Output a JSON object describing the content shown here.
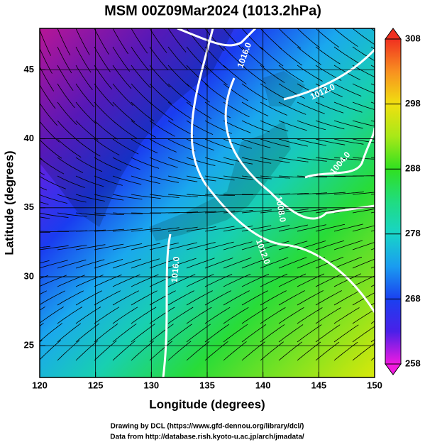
{
  "chart_data": {
    "type": "map",
    "title": "MSM 00Z09Mar2024 (1013.2hPa)",
    "x_label": "Longitude (degrees)",
    "y_label": "Latitude  (degrees)",
    "xlim": [
      120,
      150
    ],
    "xticks": [
      120,
      125,
      130,
      135,
      140,
      145,
      150
    ],
    "ylim": [
      22.7,
      48
    ],
    "yticks": [
      25,
      30,
      35,
      40,
      45
    ],
    "grid": true,
    "colorbar": {
      "lim": [
        258,
        308
      ],
      "ticks": [
        258,
        268,
        278,
        288,
        298,
        308
      ]
    },
    "contour_labels": [
      "1016.0",
      "1012.0",
      "1004.0",
      "1008.0",
      "1012.0",
      "1016.0"
    ],
    "credits": [
      "Drawing by DCL (https://www.gfd-dennou.org/library/dcl/)",
      "Data from http://database.rish.kyoto-u.ac.jp/arch/jmadata/"
    ]
  }
}
